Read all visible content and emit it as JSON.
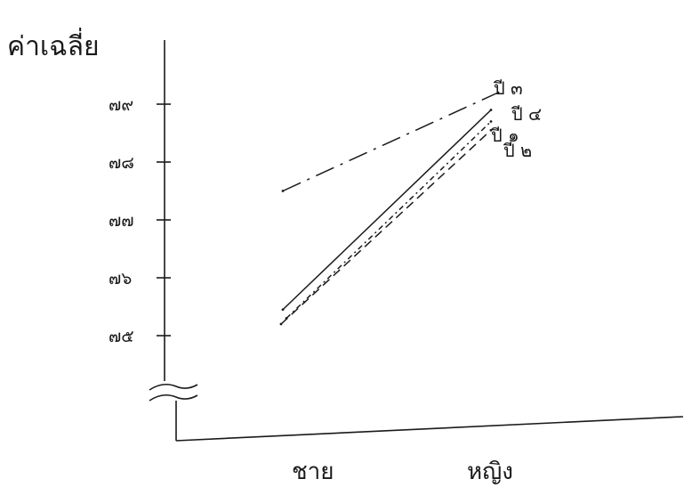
{
  "chart_data": {
    "type": "line",
    "ylabel": "ค่าเฉลี่ย",
    "categories": [
      "ชาย",
      "หญิง"
    ],
    "y_ticks": [
      {
        "value": 75,
        "label": "๗๕"
      },
      {
        "value": 76,
        "label": "๗๖"
      },
      {
        "value": 77,
        "label": "๗๗"
      },
      {
        "value": 78,
        "label": "๗๘"
      },
      {
        "value": 79,
        "label": "๗๙"
      }
    ],
    "ylim": [
      73.8,
      80.4
    ],
    "axis_break": true,
    "series": [
      {
        "name": "ปี ๑",
        "style": "solid",
        "values": [
          75.45,
          78.9
        ]
      },
      {
        "name": "ปี ๒",
        "style": "dashed",
        "values": [
          75.2,
          78.55
        ]
      },
      {
        "name": "ปี ๓",
        "style": "dashdot",
        "values": [
          77.5,
          79.2
        ]
      },
      {
        "name": "ปี ๔",
        "style": "dashed-fine",
        "values": [
          75.3,
          78.7
        ]
      }
    ]
  }
}
